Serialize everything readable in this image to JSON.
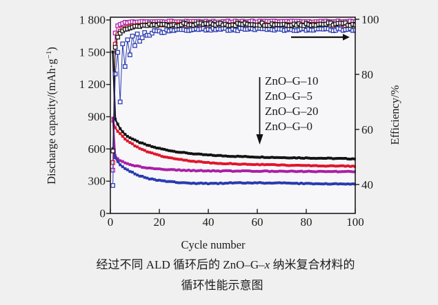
{
  "figure": {
    "xlabel": "Cycle number",
    "ylabel_left_pre": "Discharge capacity/(mAh·g",
    "ylabel_left_sup": "−1",
    "ylabel_left_post": ")",
    "ylabel_right": "Efficiency/%",
    "x_ticks": [
      "0",
      "20",
      "40",
      "60",
      "80",
      "100"
    ],
    "y_ticks_left": [
      "0",
      "300",
      "600",
      "900",
      "1 200",
      "1 500",
      "1 800"
    ],
    "y_ticks_right": [
      "40",
      "60",
      "80",
      "100"
    ],
    "legend": [
      "ZnO–G–10",
      "ZnO–G–5",
      "ZnO–G–20",
      "ZnO–G–0"
    ],
    "caption_line1_pre": "经过不同 ALD 循环后的 ZnO–G–",
    "caption_line1_italic": "x",
    "caption_line1_post": " 纳米复合材料的",
    "caption_line2": "循环性能示意图"
  },
  "chart_data": {
    "type": "line",
    "title": "",
    "xlabel": "Cycle number",
    "ylabel_left": "Discharge capacity/(mAh·g⁻¹)",
    "ylabel_right": "Efficiency/%",
    "xlim": [
      0,
      100
    ],
    "ylim_left": [
      0,
      1800
    ],
    "ylim_right": [
      40,
      100
    ],
    "grid": false,
    "legend_position": "center-right-annotation",
    "marker_style_capacity": "filled-square",
    "marker_style_efficiency": "open-square",
    "colors": {
      "ZnO-G-10": "#141414",
      "ZnO-G-5": "#e0162b",
      "ZnO-G-20": "#aa1fa5",
      "ZnO-G-0": "#2a3ab0"
    },
    "series": [
      {
        "name": "ZnO-G-10",
        "color": "#141414",
        "capacity_mAh_g": [
          [
            1,
            1500
          ],
          [
            2,
            880
          ],
          [
            3,
            830
          ],
          [
            4,
            790
          ],
          [
            5,
            760
          ],
          [
            6,
            735
          ],
          [
            8,
            705
          ],
          [
            10,
            680
          ],
          [
            12,
            660
          ],
          [
            15,
            635
          ],
          [
            18,
            615
          ],
          [
            22,
            595
          ],
          [
            26,
            578
          ],
          [
            30,
            565
          ],
          [
            35,
            552
          ],
          [
            40,
            543
          ],
          [
            45,
            537
          ],
          [
            50,
            532
          ],
          [
            60,
            525
          ],
          [
            70,
            520
          ],
          [
            80,
            516
          ],
          [
            90,
            512
          ],
          [
            100,
            508
          ]
        ],
        "efficiency_pct": [
          [
            1,
            52
          ],
          [
            2,
            90
          ],
          [
            3,
            93.5
          ],
          [
            4,
            95
          ],
          [
            5,
            95.8
          ],
          [
            6,
            96.3
          ],
          [
            8,
            96.9
          ],
          [
            10,
            97.3
          ],
          [
            15,
            97.8
          ],
          [
            20,
            98
          ],
          [
            30,
            98.1
          ],
          [
            40,
            98.2
          ],
          [
            50,
            98.2
          ],
          [
            60,
            98.3
          ],
          [
            70,
            98.2
          ],
          [
            80,
            98.2
          ],
          [
            90,
            98.3
          ],
          [
            100,
            98.2
          ]
        ]
      },
      {
        "name": "ZnO-G-5",
        "color": "#e0162b",
        "capacity_mAh_g": [
          [
            1,
            860
          ],
          [
            2,
            800
          ],
          [
            3,
            765
          ],
          [
            4,
            740
          ],
          [
            5,
            715
          ],
          [
            6,
            695
          ],
          [
            8,
            660
          ],
          [
            10,
            630
          ],
          [
            12,
            605
          ],
          [
            15,
            575
          ],
          [
            18,
            552
          ],
          [
            22,
            528
          ],
          [
            26,
            510
          ],
          [
            30,
            496
          ],
          [
            35,
            483
          ],
          [
            40,
            473
          ],
          [
            45,
            466
          ],
          [
            50,
            461
          ],
          [
            60,
            455
          ],
          [
            70,
            450
          ],
          [
            80,
            446
          ],
          [
            90,
            442
          ],
          [
            100,
            438
          ]
        ],
        "efficiency_pct": [
          [
            1,
            48
          ],
          [
            2,
            91
          ],
          [
            3,
            94.5
          ],
          [
            4,
            95.8
          ],
          [
            5,
            96.5
          ],
          [
            8,
            97.3
          ],
          [
            12,
            97.7
          ],
          [
            20,
            98
          ],
          [
            30,
            98
          ],
          [
            40,
            98
          ],
          [
            50,
            98
          ],
          [
            60,
            98
          ],
          [
            70,
            98
          ],
          [
            80,
            98
          ],
          [
            90,
            98
          ],
          [
            100,
            98
          ]
        ]
      },
      {
        "name": "ZnO-G-20",
        "color": "#aa1fa5",
        "capacity_mAh_g": [
          [
            1,
            890
          ],
          [
            2,
            540
          ],
          [
            3,
            512
          ],
          [
            4,
            494
          ],
          [
            5,
            480
          ],
          [
            6,
            470
          ],
          [
            8,
            455
          ],
          [
            10,
            444
          ],
          [
            12,
            435
          ],
          [
            15,
            425
          ],
          [
            18,
            417
          ],
          [
            22,
            410
          ],
          [
            26,
            405
          ],
          [
            30,
            401
          ],
          [
            35,
            398
          ],
          [
            40,
            396
          ],
          [
            45,
            395
          ],
          [
            50,
            394
          ],
          [
            60,
            393
          ],
          [
            70,
            392
          ],
          [
            80,
            391
          ],
          [
            90,
            390
          ],
          [
            100,
            389
          ]
        ],
        "efficiency_pct": [
          [
            1,
            45
          ],
          [
            2,
            95
          ],
          [
            3,
            97.5
          ],
          [
            4,
            98.3
          ],
          [
            6,
            98.8
          ],
          [
            10,
            99
          ],
          [
            20,
            99.1
          ],
          [
            30,
            99.2
          ],
          [
            40,
            99.1
          ],
          [
            50,
            99.2
          ],
          [
            60,
            99.2
          ],
          [
            70,
            99.1
          ],
          [
            80,
            99.2
          ],
          [
            90,
            99.2
          ],
          [
            100,
            99.2
          ]
        ]
      },
      {
        "name": "ZnO-G-0",
        "color": "#2a3ab0",
        "capacity_mAh_g": [
          [
            1,
            600
          ],
          [
            2,
            520
          ],
          [
            3,
            480
          ],
          [
            4,
            452
          ],
          [
            5,
            436
          ],
          [
            6,
            420
          ],
          [
            8,
            392
          ],
          [
            10,
            370
          ],
          [
            12,
            350
          ],
          [
            15,
            328
          ],
          [
            18,
            313
          ],
          [
            22,
            300
          ],
          [
            26,
            291
          ],
          [
            30,
            285
          ],
          [
            35,
            281
          ],
          [
            40,
            279
          ],
          [
            45,
            280
          ],
          [
            50,
            284
          ],
          [
            60,
            285
          ],
          [
            70,
            282
          ],
          [
            80,
            278
          ],
          [
            90,
            275
          ],
          [
            100,
            272
          ]
        ],
        "efficiency_pct": [
          [
            1,
            39.5
          ],
          [
            2,
            80
          ],
          [
            3,
            88
          ],
          [
            4,
            70
          ],
          [
            5,
            91
          ],
          [
            6,
            83
          ],
          [
            7,
            92.5
          ],
          [
            8,
            87
          ],
          [
            9,
            94
          ],
          [
            10,
            90.5
          ],
          [
            11,
            94.5
          ],
          [
            12,
            92
          ],
          [
            14,
            95
          ],
          [
            16,
            94.2
          ],
          [
            18,
            95.5
          ],
          [
            20,
            95.4
          ],
          [
            25,
            96
          ],
          [
            30,
            96.2
          ],
          [
            40,
            96.3
          ],
          [
            50,
            96.3
          ],
          [
            60,
            96.4
          ],
          [
            70,
            96.3
          ],
          [
            80,
            96.2
          ],
          [
            90,
            96.3
          ],
          [
            100,
            96.3
          ]
        ]
      }
    ]
  }
}
